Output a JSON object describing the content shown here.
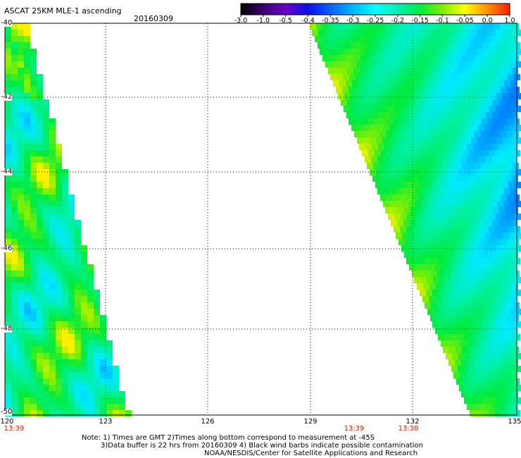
{
  "title": "ASCAT 25KM MLE-1 ascending",
  "date": "20160309",
  "colorbar": {
    "labels": [
      "-3.0",
      "-1.0",
      "-0.5",
      "-0.4",
      "-0.35",
      "-0.3",
      "-0.25",
      "-0.2",
      "-0.15",
      "-0.1",
      "-0.05",
      "0.0",
      "1.0"
    ],
    "colors": [
      "#000000",
      "#3b0070",
      "#6a00c8",
      "#0a10e8",
      "#0a60ff",
      "#00b8ff",
      "#00ffff",
      "#00f0b0",
      "#00ee40",
      "#80ee00",
      "#ffff00",
      "#ff9000",
      "#ff2000"
    ]
  },
  "axes": {
    "lat_labels": [
      "-40",
      "-42",
      "-44",
      "-46",
      "-48",
      "-50"
    ],
    "lon_labels": [
      "120",
      "123",
      "126",
      "129",
      "132",
      "135"
    ]
  },
  "swath_times": [
    "13:39",
    "13:39",
    "13:38"
  ],
  "notes": [
    "Note: 1) Times are GMT 2)Times along bottom correspond to measurement at -45S",
    "3)Data buffer is 22 hrs from 20160309 4) Black wind barbs indicate possible contamination",
    "NOAA/NESDIS/Center for Satellite Applications and Research"
  ]
}
